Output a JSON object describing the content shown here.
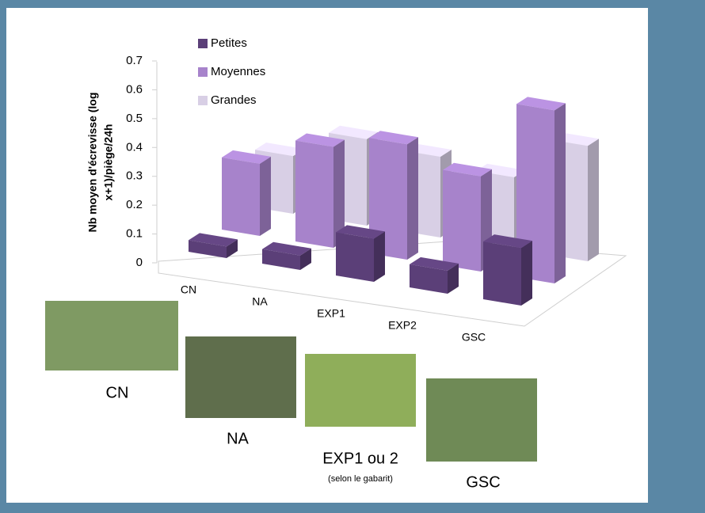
{
  "chart_data": {
    "type": "bar3d",
    "y_label": [
      "Nb moyen d'écrevisse (log",
      "x+1)/piège/24h"
    ],
    "categories": [
      "CN",
      "NA",
      "EXP1",
      "EXP2",
      "GSC"
    ],
    "series": [
      {
        "name": "Petites",
        "color": "#5b3f78",
        "values": [
          0.04,
          0.05,
          0.15,
          0.08,
          0.2
        ]
      },
      {
        "name": "Moyennes",
        "color": "#a783cb",
        "values": [
          0.25,
          0.35,
          0.4,
          0.33,
          0.6
        ]
      },
      {
        "name": "Grandes",
        "color": "#d8cfe5",
        "values": [
          0.2,
          0.3,
          0.28,
          0.25,
          0.4
        ]
      }
    ],
    "ylim": [
      0,
      0.7
    ],
    "yticks": [
      0,
      0.1,
      0.2,
      0.3,
      0.4,
      0.5,
      0.6,
      0.7
    ],
    "annotations": [
      "CN",
      "NA",
      "EXP1 ou 2",
      "(selon le gabarit)",
      "GSC"
    ]
  }
}
